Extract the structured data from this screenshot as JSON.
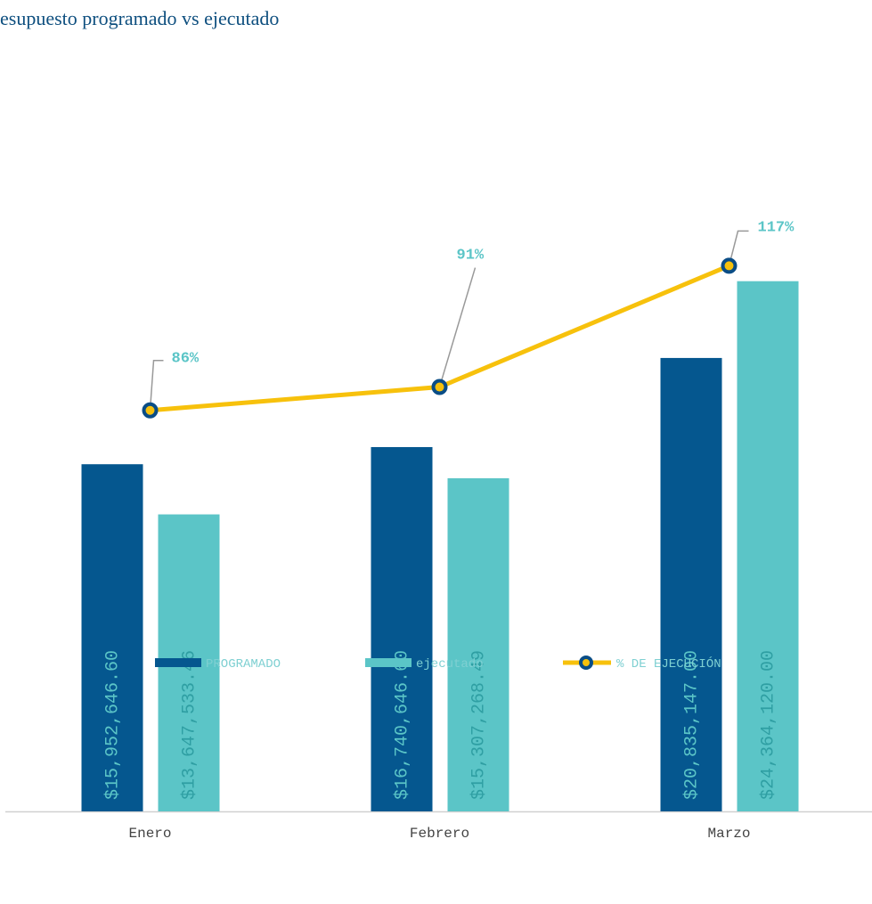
{
  "chart_data": {
    "type": "bar_line",
    "title": "esupuesto programado vs ejecutado",
    "categories": [
      "Enero",
      "Febrero",
      "Marzo"
    ],
    "series": [
      {
        "name": "PROGRAMADO",
        "color": "#05578f",
        "values": [
          15952646.6,
          16740646.6,
          20835147.0
        ],
        "value_labels": [
          "$15,952,646.60",
          "$16,740,646.60",
          "$20,835,147.00"
        ]
      },
      {
        "name": "ejecutado",
        "color": "#5bc5c7",
        "values": [
          13647533.46,
          15307268.49,
          24364120.0
        ],
        "value_labels": [
          "$13,647,533.46",
          "$15,307,268.49",
          "$24,364,120.00"
        ]
      },
      {
        "name": "% DE EJECUCIÓN",
        "color": "#f7c10c",
        "axis": "y2",
        "values": [
          86,
          91,
          117
        ],
        "value_labels": [
          "86%",
          "91%",
          "117%"
        ]
      }
    ],
    "ylim": [
      0,
      30000000
    ],
    "y2lim": [
      0,
      140
    ]
  }
}
